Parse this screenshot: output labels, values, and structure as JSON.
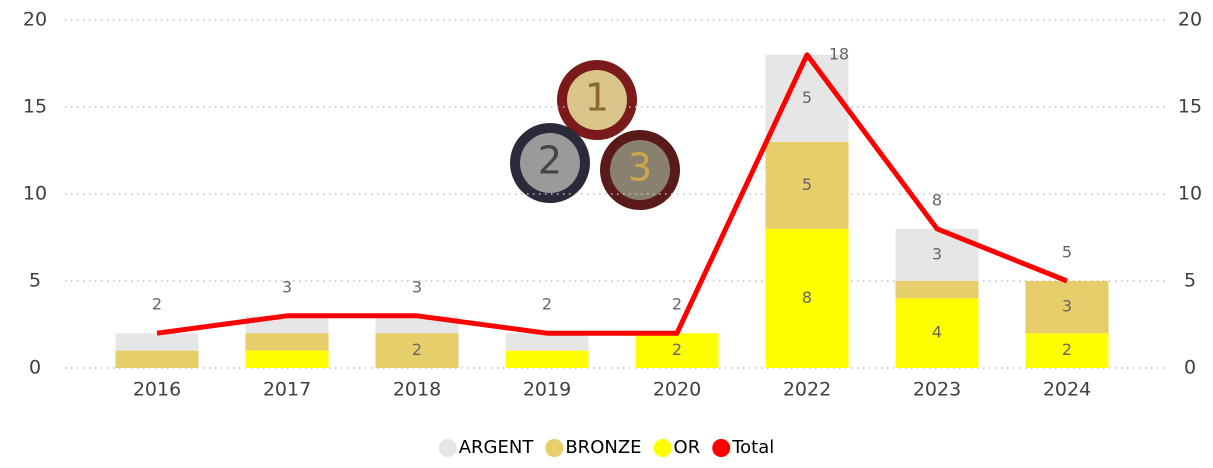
{
  "chart_data": {
    "type": "stacked-bar-line",
    "categories": [
      "2016",
      "2017",
      "2018",
      "2019",
      "2020",
      "2022",
      "2023",
      "2024"
    ],
    "series": [
      {
        "name": "ARGENT",
        "color": "#e6e6e6",
        "values": [
          1,
          1,
          1,
          1,
          0,
          5,
          3,
          0
        ]
      },
      {
        "name": "BRONZE",
        "color": "#e6cf6a",
        "values": [
          1,
          1,
          2,
          0,
          0,
          5,
          1,
          3
        ]
      },
      {
        "name": "OR",
        "color": "#ffff00",
        "values": [
          0,
          1,
          0,
          1,
          2,
          8,
          4,
          2
        ]
      },
      {
        "name": "Total",
        "color": "#ff0000",
        "type": "line",
        "axis": "y2",
        "values": [
          2,
          3,
          3,
          2,
          2,
          18,
          8,
          5
        ]
      }
    ],
    "ylim": [
      0,
      20
    ],
    "yticks": [
      0,
      5,
      10,
      15,
      20
    ],
    "y2lim": [
      0,
      20
    ],
    "y2ticks": [
      0,
      5,
      10,
      15,
      20
    ],
    "grid": true,
    "legend": "bottom"
  }
}
